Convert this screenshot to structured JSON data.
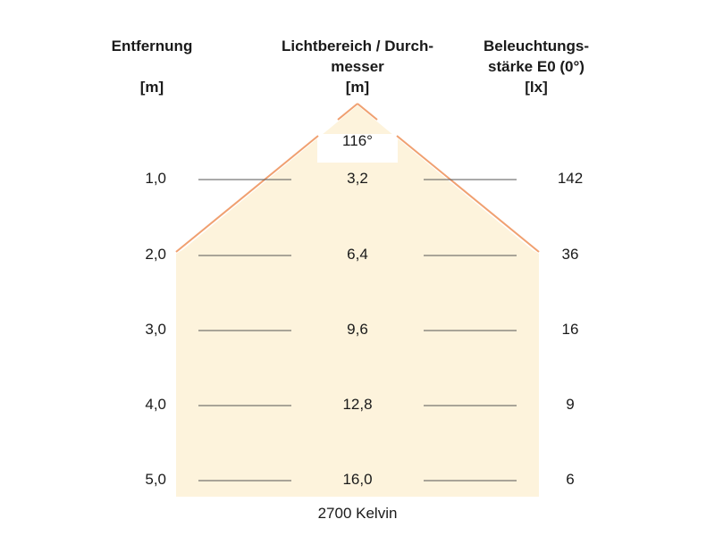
{
  "headers": {
    "distance": {
      "line1": "Entfernung",
      "line2": "",
      "unit": "[m]"
    },
    "diameter": {
      "line1": "Lichtbereich / Durch-",
      "line2": "messer",
      "unit": "[m]"
    },
    "illuminance": {
      "line1": "Beleuchtungs-",
      "line2": "stärke E0 (0°)",
      "unit": "[lx]"
    }
  },
  "beam_angle": "116°",
  "color_temperature": "2700 Kelvin",
  "colors": {
    "beam_fill": "#fdf3dc",
    "beam_edge": "#f0a070",
    "rule_line": "#555555",
    "text": "#1a1a1a"
  },
  "rows": [
    {
      "distance": "1,0",
      "diameter": "3,2",
      "illuminance": "142"
    },
    {
      "distance": "2,0",
      "diameter": "6,4",
      "illuminance": "36"
    },
    {
      "distance": "3,0",
      "diameter": "9,6",
      "illuminance": "16"
    },
    {
      "distance": "4,0",
      "diameter": "12,8",
      "illuminance": "9"
    },
    {
      "distance": "5,0",
      "diameter": "16,0",
      "illuminance": "6"
    }
  ]
}
